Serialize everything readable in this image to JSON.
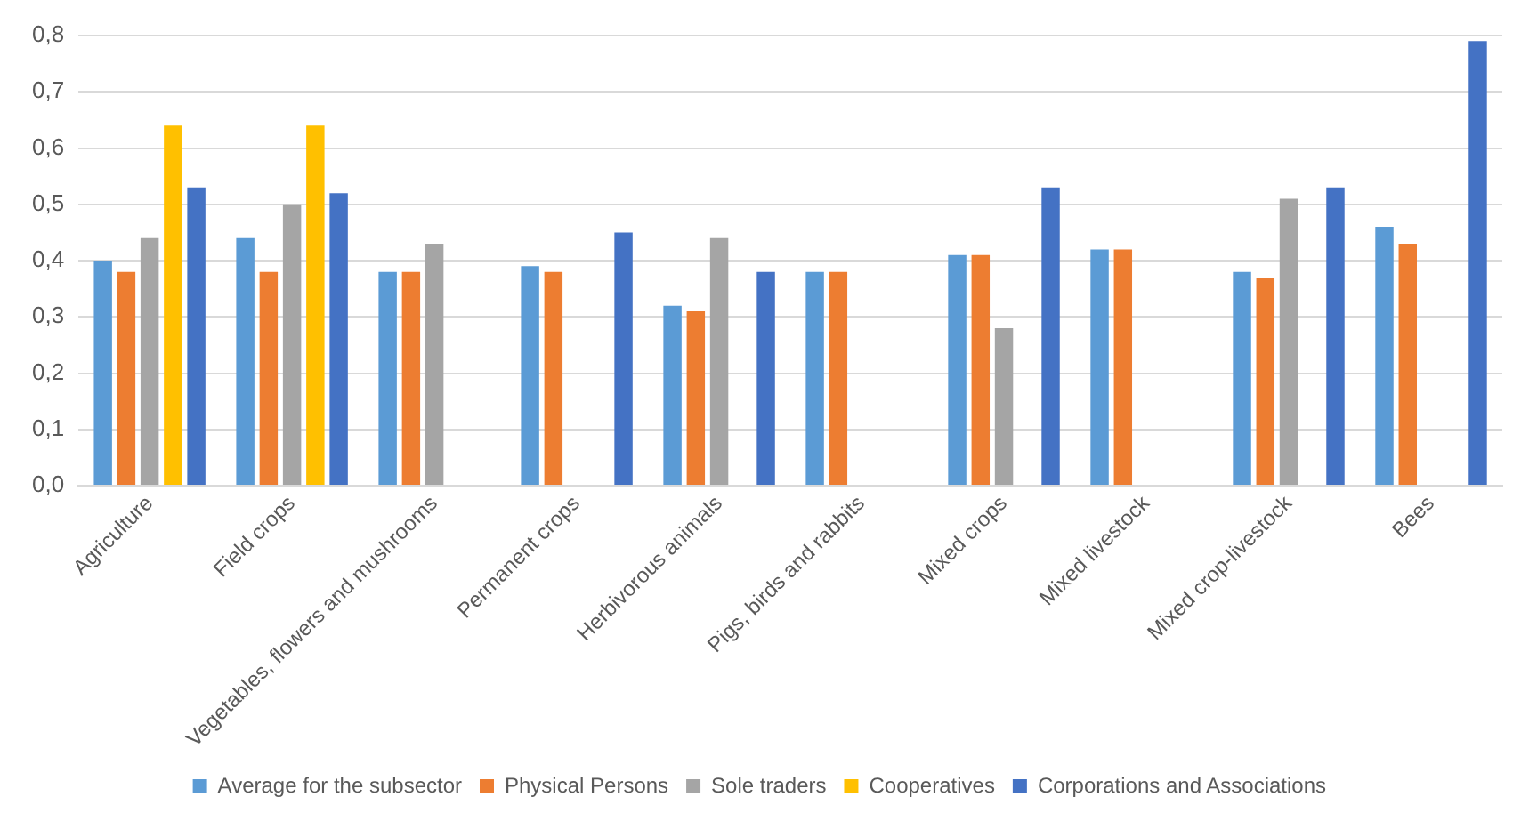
{
  "chart_data": {
    "type": "bar",
    "categories": [
      "Agriculture",
      "Field crops",
      "Vegetables, flowers and mushrooms",
      "Permanent crops",
      "Herbivorous animals",
      "Pigs, birds and rabbits",
      "Mixed crops",
      "Mixed livestock",
      "Mixed crop-livestock",
      "Bees"
    ],
    "series": [
      {
        "name": "Average for the subsector",
        "color": "#5b9bd5",
        "values": [
          0.4,
          0.44,
          0.38,
          0.39,
          0.32,
          0.38,
          0.41,
          0.42,
          0.38,
          0.46
        ]
      },
      {
        "name": "Physical Persons",
        "color": "#ed7d31",
        "values": [
          0.38,
          0.38,
          0.38,
          0.38,
          0.31,
          0.38,
          0.41,
          0.42,
          0.37,
          0.43
        ]
      },
      {
        "name": "Sole traders",
        "color": "#a5a5a5",
        "values": [
          0.44,
          0.5,
          0.43,
          null,
          0.44,
          null,
          0.28,
          null,
          0.51,
          null
        ]
      },
      {
        "name": "Cooperatives",
        "color": "#ffc000",
        "values": [
          0.64,
          0.64,
          null,
          null,
          null,
          null,
          null,
          null,
          null,
          null
        ]
      },
      {
        "name": "Corporations and Associations",
        "color": "#4472c4",
        "values": [
          0.53,
          0.52,
          null,
          0.45,
          0.38,
          null,
          0.53,
          null,
          0.53,
          0.79
        ]
      }
    ],
    "ylim": [
      0,
      0.8
    ],
    "yticks": [
      {
        "value": 0,
        "label": "0,0"
      },
      {
        "value": 0.1,
        "label": "0,1"
      },
      {
        "value": 0.2,
        "label": "0,2"
      },
      {
        "value": 0.3,
        "label": "0,3"
      },
      {
        "value": 0.4,
        "label": "0,4"
      },
      {
        "value": 0.5,
        "label": "0,5"
      },
      {
        "value": 0.6,
        "label": "0,6"
      },
      {
        "value": 0.7,
        "label": "0,7"
      },
      {
        "value": 0.8,
        "label": "0,8"
      }
    ],
    "grid": "y",
    "legend": "bottom"
  }
}
